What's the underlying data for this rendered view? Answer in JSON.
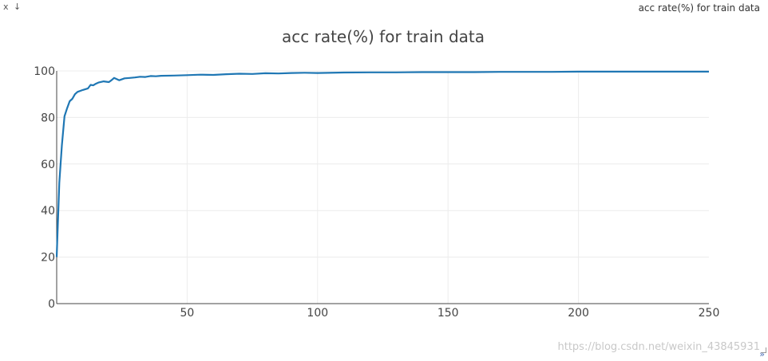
{
  "window": {
    "title": "acc rate(%) for train data",
    "close_icon": "x",
    "download_icon": "↓",
    "expand_icon": "»"
  },
  "watermark": "https://blog.csdn.net/weixin_43845931",
  "chart_data": {
    "type": "line",
    "title": "acc rate(%) for train data",
    "xlabel": "",
    "ylabel": "",
    "xlim": [
      0,
      250
    ],
    "ylim": [
      0,
      100
    ],
    "xticks": [
      50,
      100,
      150,
      200,
      250
    ],
    "yticks": [
      0,
      20,
      40,
      60,
      80,
      100
    ],
    "grid": true,
    "line_color": "#1f77b4",
    "series": [
      {
        "x": [
          0,
          1,
          2,
          3,
          4,
          5,
          6,
          7,
          8,
          10,
          12,
          13,
          14,
          15,
          16,
          18,
          20,
          21,
          22,
          24,
          26,
          28,
          30,
          32,
          34,
          36,
          38,
          40,
          45,
          50,
          55,
          60,
          65,
          70,
          75,
          80,
          85,
          90,
          95,
          100,
          110,
          120,
          130,
          140,
          150,
          160,
          170,
          180,
          190,
          200,
          210,
          220,
          230,
          240,
          250
        ],
        "y": [
          20,
          52,
          68,
          80.5,
          84,
          87,
          88,
          90,
          91,
          91.8,
          92.5,
          94,
          93.8,
          94.5,
          95,
          95.5,
          95.2,
          96,
          97,
          96,
          96.8,
          97,
          97.2,
          97.5,
          97.4,
          97.8,
          97.7,
          97.9,
          98,
          98.2,
          98.4,
          98.3,
          98.6,
          98.8,
          98.7,
          99,
          98.9,
          99.1,
          99.2,
          99.1,
          99.3,
          99.4,
          99.4,
          99.5,
          99.5,
          99.5,
          99.6,
          99.6,
          99.6,
          99.7,
          99.7,
          99.7,
          99.7,
          99.7,
          99.7
        ]
      }
    ]
  }
}
